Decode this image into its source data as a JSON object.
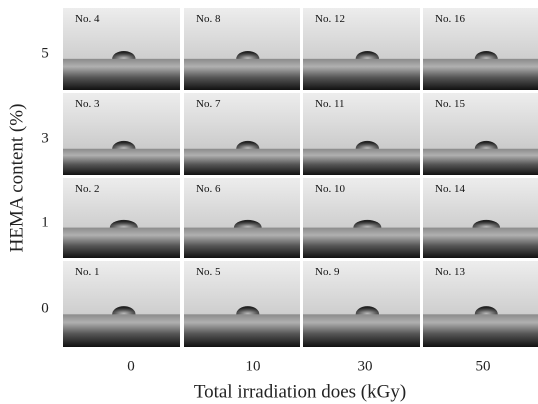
{
  "y_axis": {
    "label": "HEMA content (%)",
    "ticks": [
      "5",
      "3",
      "1",
      "0"
    ]
  },
  "x_axis": {
    "label": "Total irradiation does (kGy)",
    "ticks": [
      "0",
      "10",
      "30",
      "50"
    ]
  },
  "panels": [
    [
      "No. 4",
      "No. 8",
      "No. 12",
      "No. 16"
    ],
    [
      "No. 3",
      "No. 7",
      "No. 11",
      "No. 15"
    ],
    [
      "No. 2",
      "No. 6",
      "No. 10",
      "No. 14"
    ],
    [
      "No. 1",
      "No. 5",
      "No. 9",
      "No. 13"
    ]
  ]
}
